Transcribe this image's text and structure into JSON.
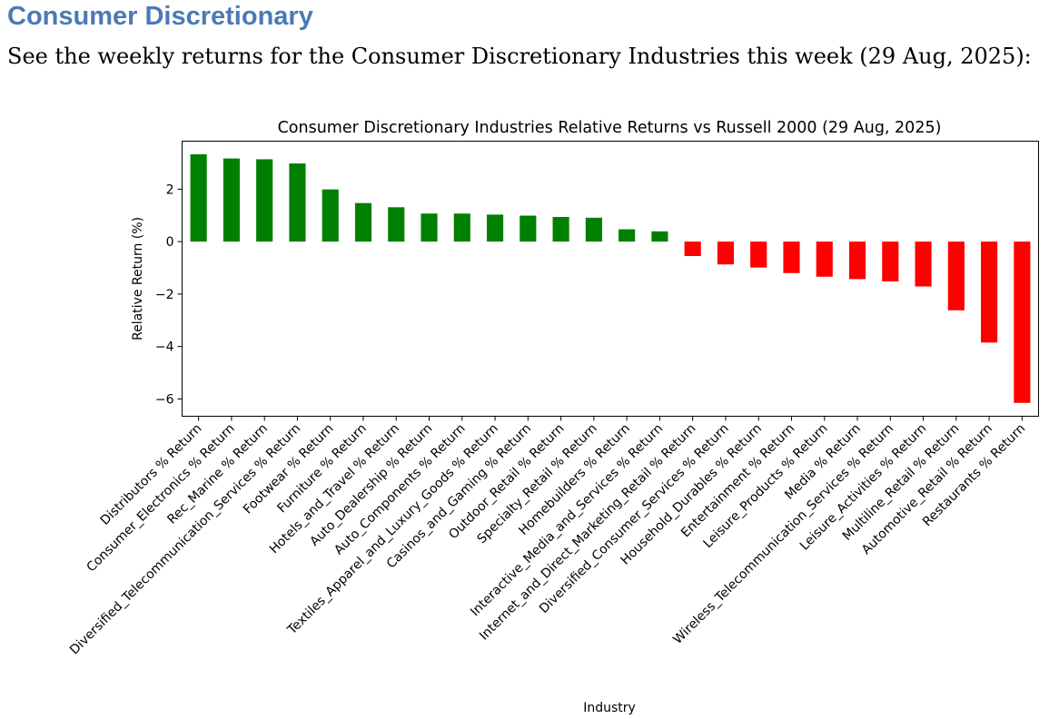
{
  "heading": "Consumer Discretionary",
  "subheading": "See the weekly returns for the Consumer Discretionary Industries this week (29 Aug, 2025):",
  "chart_data": {
    "type": "bar",
    "title": "Consumer Discretionary Industries Relative Returns vs Russell 2000 (29 Aug, 2025)",
    "xlabel": "Industry",
    "ylabel": "Relative Return (%)",
    "ylim": [
      -6.66,
      3.83
    ],
    "yticks": [
      -6,
      -4,
      -2,
      0,
      2
    ],
    "grid": false,
    "positive_color": "#008000",
    "negative_color": "#ff0000",
    "categories": [
      "Distributors % Return",
      "Consumer_Electronics % Return",
      "Rec_Marine % Return",
      "Diversified_Telecommunication_Services % Return",
      "Footwear % Return",
      "Furniture % Return",
      "Hotels_and_Travel % Return",
      "Auto_Dealership % Return",
      "Auto_Components % Return",
      "Textiles_Apparel_and_Luxury_Goods % Return",
      "Casinos_and_Gaming % Return",
      "Outdoor_Retail % Return",
      "Specialty_Retail % Return",
      "Homebuilders % Return",
      "Interactive_Media_and_Services % Return",
      "Internet_and_Direct_Marketing_Retail % Return",
      "Diversified_Consumer_Services % Return",
      "Household_Durables % Return",
      "Entertainment % Return",
      "Leisure_Products % Return",
      "Media % Return",
      "Wireless_Telecommunication_Services % Return",
      "Leisure_Activities % Return",
      "Multiline_Retail % Return",
      "Automotive_Retail % Return",
      "Restaurants % Return"
    ],
    "values": [
      3.33,
      3.17,
      3.14,
      2.98,
      1.99,
      1.47,
      1.31,
      1.07,
      1.07,
      1.03,
      0.99,
      0.94,
      0.91,
      0.47,
      0.39,
      -0.55,
      -0.87,
      -0.99,
      -1.2,
      -1.34,
      -1.43,
      -1.52,
      -1.71,
      -2.62,
      -3.85,
      -6.15
    ]
  }
}
